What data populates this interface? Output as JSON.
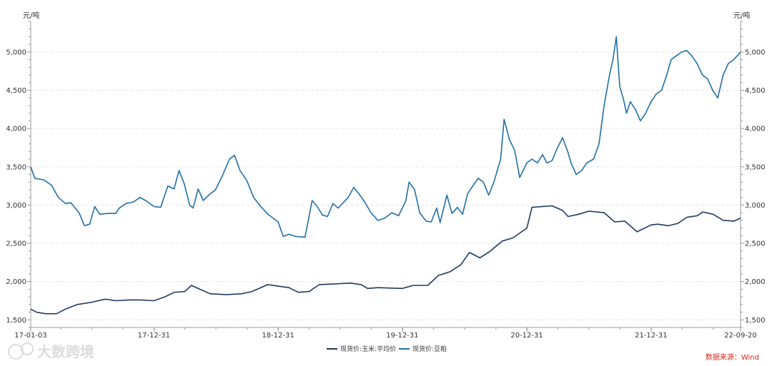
{
  "chart_data": {
    "type": "line",
    "title": "",
    "y_unit_left": "元/吨",
    "y_unit_right": "元/吨",
    "ylim": [
      1400,
      5400
    ],
    "y_ticks": [
      1500,
      2000,
      2500,
      3000,
      3500,
      4000,
      4500,
      5000
    ],
    "y_tick_labels": [
      "1,500",
      "2,000",
      "2,500",
      "3,000",
      "3,500",
      "4,000",
      "4,500",
      "5,000"
    ],
    "x_tick_labels": [
      "17-01-03",
      "17-12-31",
      "18-12-31",
      "19-12-31",
      "20-12-31",
      "21-12-31",
      "22-09-20"
    ],
    "x_tick_dates": [
      "2017-01-03",
      "2017-12-31",
      "2018-12-31",
      "2019-12-31",
      "2020-12-31",
      "2021-12-31",
      "2022-09-20"
    ],
    "grid": "horizontal-dashed",
    "legend_position": "bottom-center",
    "series": [
      {
        "name": "现货价:玉米:平均价",
        "color": "#1f3a5f",
        "points": [
          [
            "2017-01-03",
            1640
          ],
          [
            "2017-01-20",
            1600
          ],
          [
            "2017-02-15",
            1580
          ],
          [
            "2017-03-20",
            1580
          ],
          [
            "2017-04-15",
            1640
          ],
          [
            "2017-05-20",
            1700
          ],
          [
            "2017-07-01",
            1730
          ],
          [
            "2017-08-10",
            1770
          ],
          [
            "2017-09-10",
            1750
          ],
          [
            "2017-10-20",
            1760
          ],
          [
            "2017-11-20",
            1760
          ],
          [
            "2017-12-31",
            1750
          ],
          [
            "2018-02-01",
            1800
          ],
          [
            "2018-03-01",
            1860
          ],
          [
            "2018-04-01",
            1870
          ],
          [
            "2018-04-20",
            1950
          ],
          [
            "2018-05-15",
            1900
          ],
          [
            "2018-06-15",
            1840
          ],
          [
            "2018-08-01",
            1830
          ],
          [
            "2018-09-15",
            1840
          ],
          [
            "2018-10-15",
            1870
          ],
          [
            "2018-12-01",
            1960
          ],
          [
            "2018-12-31",
            1940
          ],
          [
            "2019-02-01",
            1920
          ],
          [
            "2019-03-01",
            1860
          ],
          [
            "2019-04-01",
            1870
          ],
          [
            "2019-05-01",
            1960
          ],
          [
            "2019-06-15",
            1970
          ],
          [
            "2019-08-01",
            1980
          ],
          [
            "2019-09-01",
            1960
          ],
          [
            "2019-09-20",
            1910
          ],
          [
            "2019-10-20",
            1920
          ],
          [
            "2019-12-31",
            1910
          ],
          [
            "2020-02-01",
            1950
          ],
          [
            "2020-03-15",
            1950
          ],
          [
            "2020-04-15",
            2080
          ],
          [
            "2020-05-20",
            2130
          ],
          [
            "2020-06-20",
            2220
          ],
          [
            "2020-07-15",
            2380
          ],
          [
            "2020-08-15",
            2310
          ],
          [
            "2020-09-15",
            2400
          ],
          [
            "2020-10-20",
            2530
          ],
          [
            "2020-11-20",
            2570
          ],
          [
            "2020-12-31",
            2700
          ],
          [
            "2021-01-15",
            2970
          ],
          [
            "2021-02-15",
            2980
          ],
          [
            "2021-03-15",
            2990
          ],
          [
            "2021-04-15",
            2930
          ],
          [
            "2021-05-01",
            2850
          ],
          [
            "2021-06-01",
            2880
          ],
          [
            "2021-07-01",
            2920
          ],
          [
            "2021-08-15",
            2900
          ],
          [
            "2021-09-15",
            2780
          ],
          [
            "2021-10-15",
            2790
          ],
          [
            "2021-11-20",
            2650
          ],
          [
            "2021-12-31",
            2740
          ],
          [
            "2022-01-20",
            2750
          ],
          [
            "2022-02-20",
            2730
          ],
          [
            "2022-03-20",
            2760
          ],
          [
            "2022-04-15",
            2840
          ],
          [
            "2022-05-15",
            2860
          ],
          [
            "2022-06-01",
            2910
          ],
          [
            "2022-07-01",
            2880
          ],
          [
            "2022-08-01",
            2800
          ],
          [
            "2022-09-01",
            2790
          ],
          [
            "2022-09-20",
            2830
          ]
        ]
      },
      {
        "name": "现货价:豆粕",
        "color": "#2170a6",
        "points": [
          [
            "2017-01-03",
            3500
          ],
          [
            "2017-01-15",
            3350
          ],
          [
            "2017-02-10",
            3330
          ],
          [
            "2017-03-05",
            3260
          ],
          [
            "2017-03-25",
            3100
          ],
          [
            "2017-04-15",
            3020
          ],
          [
            "2017-05-01",
            3030
          ],
          [
            "2017-05-25",
            2900
          ],
          [
            "2017-06-10",
            2730
          ],
          [
            "2017-06-25",
            2750
          ],
          [
            "2017-07-10",
            2980
          ],
          [
            "2017-07-25",
            2880
          ],
          [
            "2017-08-15",
            2890
          ],
          [
            "2017-09-10",
            2890
          ],
          [
            "2017-09-20",
            2960
          ],
          [
            "2017-10-10",
            3020
          ],
          [
            "2017-11-01",
            3040
          ],
          [
            "2017-11-20",
            3100
          ],
          [
            "2017-12-10",
            3050
          ],
          [
            "2017-12-31",
            2980
          ],
          [
            "2018-01-20",
            2970
          ],
          [
            "2018-02-10",
            3250
          ],
          [
            "2018-02-28",
            3210
          ],
          [
            "2018-03-15",
            3450
          ],
          [
            "2018-03-30",
            3280
          ],
          [
            "2018-04-15",
            3000
          ],
          [
            "2018-04-25",
            2960
          ],
          [
            "2018-05-10",
            3210
          ],
          [
            "2018-05-25",
            3060
          ],
          [
            "2018-06-10",
            3130
          ],
          [
            "2018-06-30",
            3200
          ],
          [
            "2018-07-20",
            3380
          ],
          [
            "2018-08-10",
            3600
          ],
          [
            "2018-08-25",
            3650
          ],
          [
            "2018-09-10",
            3450
          ],
          [
            "2018-09-30",
            3320
          ],
          [
            "2018-10-20",
            3100
          ],
          [
            "2018-11-10",
            2980
          ],
          [
            "2018-12-01",
            2880
          ],
          [
            "2018-12-31",
            2780
          ],
          [
            "2019-01-15",
            2590
          ],
          [
            "2019-02-01",
            2620
          ],
          [
            "2019-02-20",
            2590
          ],
          [
            "2019-03-20",
            2580
          ],
          [
            "2019-04-10",
            3060
          ],
          [
            "2019-04-25",
            2980
          ],
          [
            "2019-05-10",
            2870
          ],
          [
            "2019-05-25",
            2850
          ],
          [
            "2019-06-10",
            3020
          ],
          [
            "2019-06-25",
            2960
          ],
          [
            "2019-07-10",
            3030
          ],
          [
            "2019-07-25",
            3100
          ],
          [
            "2019-08-10",
            3230
          ],
          [
            "2019-08-25",
            3150
          ],
          [
            "2019-09-10",
            3050
          ],
          [
            "2019-09-30",
            2900
          ],
          [
            "2019-10-20",
            2800
          ],
          [
            "2019-11-10",
            2830
          ],
          [
            "2019-11-30",
            2900
          ],
          [
            "2019-12-20",
            2860
          ],
          [
            "2020-01-10",
            3050
          ],
          [
            "2020-01-20",
            3300
          ],
          [
            "2020-02-05",
            3200
          ],
          [
            "2020-02-20",
            2900
          ],
          [
            "2020-03-10",
            2790
          ],
          [
            "2020-03-25",
            2780
          ],
          [
            "2020-04-10",
            2960
          ],
          [
            "2020-04-20",
            2770
          ],
          [
            "2020-05-10",
            3130
          ],
          [
            "2020-05-25",
            2890
          ],
          [
            "2020-06-10",
            2970
          ],
          [
            "2020-06-25",
            2880
          ],
          [
            "2020-07-10",
            3150
          ],
          [
            "2020-07-25",
            3250
          ],
          [
            "2020-08-10",
            3350
          ],
          [
            "2020-08-25",
            3300
          ],
          [
            "2020-09-10",
            3130
          ],
          [
            "2020-09-25",
            3300
          ],
          [
            "2020-10-15",
            3600
          ],
          [
            "2020-10-25",
            4120
          ],
          [
            "2020-11-10",
            3850
          ],
          [
            "2020-11-25",
            3720
          ],
          [
            "2020-12-10",
            3360
          ],
          [
            "2020-12-31",
            3550
          ],
          [
            "2021-01-15",
            3600
          ],
          [
            "2021-01-31",
            3550
          ],
          [
            "2021-02-15",
            3660
          ],
          [
            "2021-02-28",
            3550
          ],
          [
            "2021-03-15",
            3580
          ],
          [
            "2021-03-31",
            3750
          ],
          [
            "2021-04-15",
            3880
          ],
          [
            "2021-04-30",
            3700
          ],
          [
            "2021-05-10",
            3550
          ],
          [
            "2021-05-25",
            3400
          ],
          [
            "2021-06-10",
            3450
          ],
          [
            "2021-06-25",
            3550
          ],
          [
            "2021-07-15",
            3600
          ],
          [
            "2021-07-31",
            3800
          ],
          [
            "2021-08-15",
            4300
          ],
          [
            "2021-08-31",
            4700
          ],
          [
            "2021-09-10",
            4900
          ],
          [
            "2021-09-20",
            5200
          ],
          [
            "2021-09-30",
            4550
          ],
          [
            "2021-10-10",
            4400
          ],
          [
            "2021-10-20",
            4200
          ],
          [
            "2021-10-31",
            4350
          ],
          [
            "2021-11-15",
            4250
          ],
          [
            "2021-11-30",
            4100
          ],
          [
            "2021-12-15",
            4200
          ],
          [
            "2021-12-31",
            4350
          ],
          [
            "2022-01-15",
            4450
          ],
          [
            "2022-01-31",
            4500
          ],
          [
            "2022-02-15",
            4700
          ],
          [
            "2022-02-28",
            4900
          ],
          [
            "2022-03-15",
            4950
          ],
          [
            "2022-03-31",
            5000
          ],
          [
            "2022-04-15",
            5020
          ],
          [
            "2022-04-30",
            4950
          ],
          [
            "2022-05-15",
            4850
          ],
          [
            "2022-05-31",
            4700
          ],
          [
            "2022-06-15",
            4650
          ],
          [
            "2022-06-30",
            4500
          ],
          [
            "2022-07-15",
            4400
          ],
          [
            "2022-07-31",
            4700
          ],
          [
            "2022-08-15",
            4850
          ],
          [
            "2022-08-31",
            4900
          ],
          [
            "2022-09-10",
            4950
          ],
          [
            "2022-09-20",
            5000
          ]
        ]
      }
    ],
    "source": "数据来源：Wind",
    "watermark": "大数跨境"
  }
}
